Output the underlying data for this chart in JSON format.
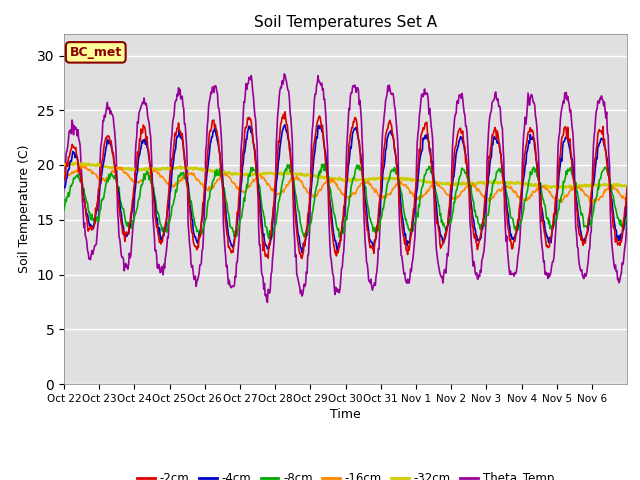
{
  "title": "Soil Temperatures Set A",
  "xlabel": "Time",
  "ylabel": "Soil Temperature (C)",
  "ylim": [
    0,
    32
  ],
  "yticks": [
    0,
    5,
    10,
    15,
    20,
    25,
    30
  ],
  "bg_color": "#e0e0e0",
  "annotation_text": "BC_met",
  "annotation_bg": "#ffff99",
  "annotation_border": "#8B0000",
  "legend_labels": [
    "-2cm",
    "-4cm",
    "-8cm",
    "-16cm",
    "-32cm",
    "Theta_Temp"
  ],
  "line_colors": [
    "#dd0000",
    "#0000cc",
    "#00aa00",
    "#ff8800",
    "#cccc00",
    "#990099"
  ],
  "line_widths": [
    1.2,
    1.2,
    1.2,
    1.2,
    1.8,
    1.2
  ],
  "xtick_labels": [
    "Oct 22",
    "Oct 23",
    "Oct 24",
    "Oct 25",
    "Oct 26",
    "Oct 27",
    "Oct 28",
    "Oct 29",
    "Oct 30",
    "Oct 31",
    "Nov 1",
    "Nov 2",
    "Nov 3",
    "Nov 4",
    "Nov 5",
    "Nov 6"
  ],
  "n_days": 16,
  "pts_per_day": 48
}
